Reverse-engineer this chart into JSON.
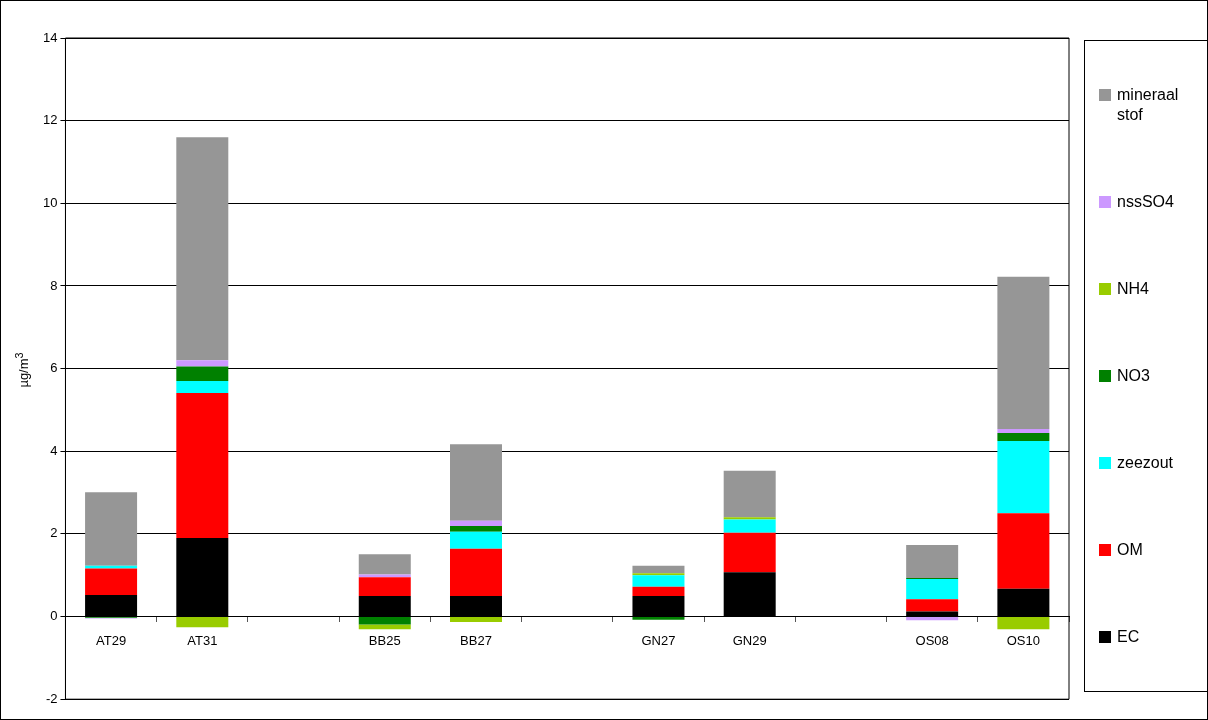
{
  "chart_data": {
    "type": "bar",
    "stacked": true,
    "ylabel": "µg/m$^{3}$",
    "categories": [
      "AT29",
      "AT31",
      null,
      "BB25",
      "BB27",
      null,
      "GN27",
      "GN29",
      null,
      "OS08",
      "OS10"
    ],
    "ylim": [
      -2,
      14
    ],
    "yticks": [
      -2,
      0,
      2,
      4,
      6,
      8,
      10,
      12,
      14
    ],
    "grid": "y",
    "legend": "right",
    "series": [
      {
        "name": "EC",
        "color": "#000000",
        "values": [
          0.52,
          1.9,
          null,
          0.5,
          0.5,
          null,
          0.5,
          1.07,
          null,
          0.12,
          0.67
        ]
      },
      {
        "name": "OM",
        "color": "#ff0000",
        "values": [
          0.64,
          3.51,
          null,
          0.45,
          1.14,
          null,
          0.22,
          0.96,
          null,
          0.3,
          1.83
        ]
      },
      {
        "name": "zeezout",
        "color": "#00ffff",
        "values": [
          0.07,
          0.29,
          null,
          null,
          0.41,
          null,
          0.28,
          0.32,
          null,
          0.49,
          1.75
        ]
      },
      {
        "name": "NO3",
        "color": "#008000",
        "values": [
          -0.03,
          0.35,
          null,
          -0.19,
          0.14,
          null,
          -0.08,
          null,
          null,
          0.02,
          0.19
        ]
      },
      {
        "name": "NH4",
        "color": "#99cc00",
        "values": [
          null,
          -0.26,
          null,
          -0.12,
          -0.13,
          null,
          0.05,
          0.05,
          null,
          null,
          -0.31
        ]
      },
      {
        "name": "nssSO4",
        "color": "#cc99ff",
        "values": [
          -0.02,
          0.15,
          null,
          0.07,
          0.13,
          null,
          null,
          null,
          null,
          -0.09,
          0.1
        ]
      },
      {
        "name": "mineraal stof",
        "color": "#969696",
        "values": [
          1.78,
          5.4,
          null,
          0.49,
          1.85,
          null,
          0.18,
          1.13,
          null,
          0.8,
          3.68
        ]
      }
    ]
  }
}
